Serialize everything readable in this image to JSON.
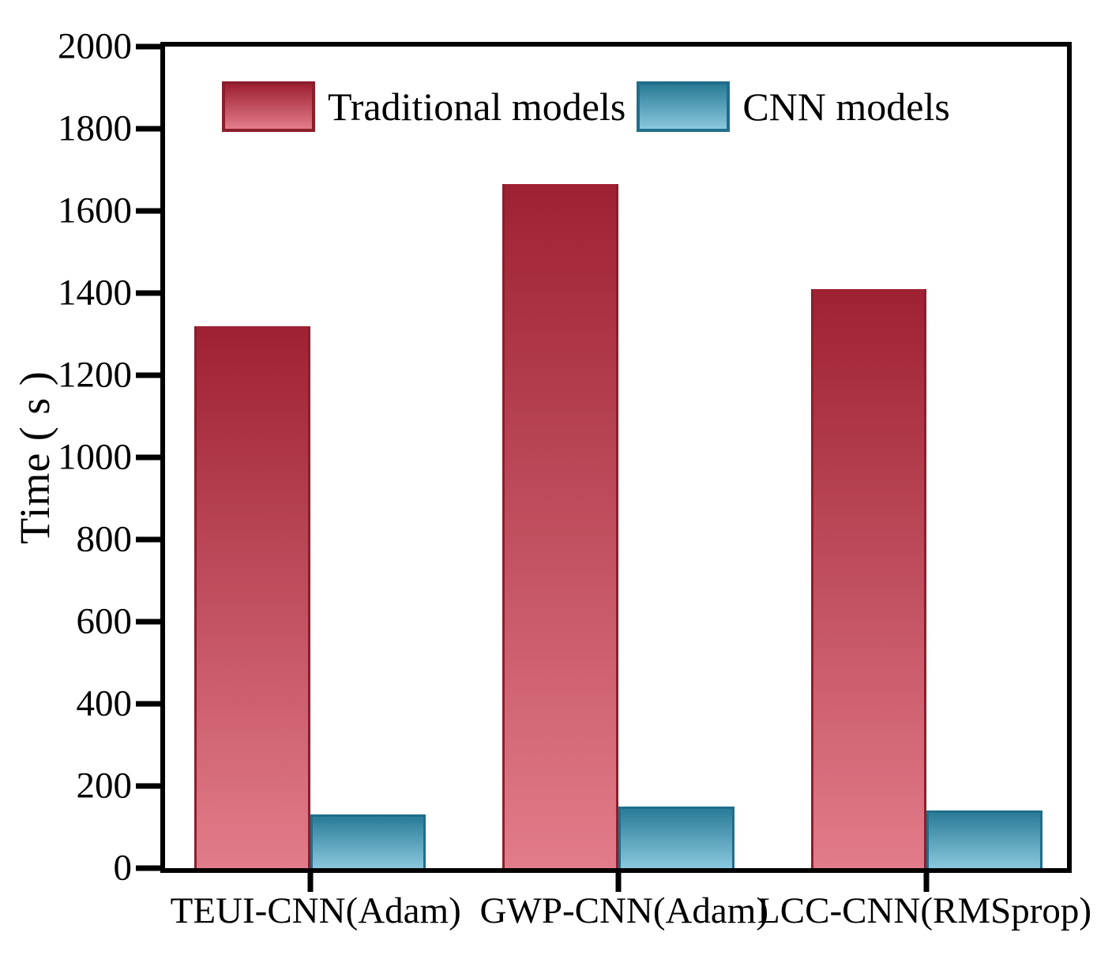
{
  "chart_data": {
    "type": "bar",
    "title": "",
    "categories": [
      "TEUI-CNN(Adam)",
      "GWP-CNN(Adam)",
      "LCC-CNN(RMSprop)"
    ],
    "series": [
      {
        "name": "Traditional models",
        "values": [
          1320,
          1665,
          1410
        ]
      },
      {
        "name": "CNN models",
        "values": [
          130,
          150,
          140
        ]
      }
    ],
    "xlabel": "",
    "ylabel": "Time ( s )",
    "ylim": [
      0,
      2000
    ],
    "yticks": [
      0,
      200,
      400,
      600,
      800,
      1000,
      1200,
      1400,
      1600,
      1800,
      2000
    ],
    "grid": false,
    "legend_position": "top-left-inside"
  },
  "colors": {
    "traditional_top": "#9e2132",
    "traditional_bottom": "#e27c8a",
    "traditional_border": "#8c1e2c",
    "cnn_top": "#2a7b97",
    "cnn_bottom": "#8ac8de",
    "cnn_border": "#1f6e8a",
    "axis": "#000000",
    "text": "#000000",
    "background": "#ffffff"
  }
}
